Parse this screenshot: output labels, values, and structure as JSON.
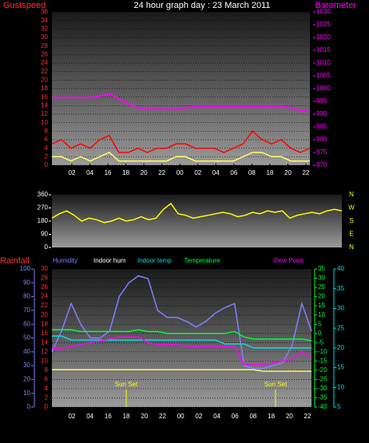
{
  "chart_data": [
    {
      "type": "line",
      "title": "24 hour graph day : 23 March 2011",
      "ylabel": "Gustspeed",
      "y2label": "Barometer",
      "x_labels": [
        "02",
        "04",
        "16",
        "18",
        "20",
        "22",
        "00",
        "02",
        "04",
        "06",
        "08",
        "18",
        "20",
        "22"
      ],
      "ylim": [
        0,
        36
      ],
      "yticks": [
        0,
        2,
        4,
        6,
        8,
        10,
        12,
        14,
        16,
        18,
        20,
        22,
        24,
        26,
        28,
        30,
        32,
        34,
        36
      ],
      "y2lim": [
        970,
        1030
      ],
      "y2ticks": [
        970,
        975,
        980,
        985,
        990,
        995,
        1000,
        1005,
        1010,
        1015,
        1020,
        1025,
        1030
      ],
      "grid": true,
      "series": [
        {
          "color": "#ff0000",
          "values": [
            5,
            6,
            4,
            5,
            4,
            6,
            7,
            3,
            3,
            4,
            3,
            4,
            4,
            5,
            5,
            4,
            4,
            4,
            3,
            4,
            5,
            8,
            6,
            5,
            6,
            4,
            3,
            4
          ]
        },
        {
          "color": "#ffff66",
          "values": [
            2,
            2,
            1,
            2,
            1,
            2,
            3,
            1,
            1,
            1,
            1,
            1,
            1,
            2,
            2,
            1,
            1,
            1,
            1,
            1,
            2,
            3,
            3,
            2,
            2,
            1,
            1,
            1
          ]
        },
        {
          "color": "#ff00ff",
          "axis": "y2",
          "values": [
            996.5,
            996.5,
            996.5,
            996.5,
            996.5,
            997,
            998,
            996,
            994,
            992.5,
            992,
            992,
            992,
            992,
            992.5,
            993,
            993,
            993,
            993,
            993,
            993,
            993,
            993,
            993,
            993,
            992.5,
            991.5,
            991
          ]
        }
      ]
    },
    {
      "type": "line",
      "ylim": [
        0,
        360
      ],
      "yticks": [
        0,
        90,
        180,
        270,
        360
      ],
      "direction_labels": [
        "N",
        "W",
        "S",
        "E",
        "N"
      ],
      "series": [
        {
          "color": "#ffff00",
          "values": [
            200,
            230,
            250,
            220,
            180,
            200,
            190,
            170,
            180,
            200,
            180,
            190,
            210,
            190,
            200,
            260,
            300,
            230,
            220,
            200,
            210,
            220,
            230,
            240,
            230,
            210,
            220,
            240,
            230,
            250,
            240,
            250,
            200,
            220,
            230,
            240,
            230,
            250,
            260,
            250
          ]
        }
      ]
    },
    {
      "type": "line",
      "ylabel": "Rainfall",
      "x_labels": [
        "02",
        "04",
        "16",
        "18",
        "20",
        "22",
        "00",
        "02",
        "04",
        "06",
        "08",
        "18",
        "20",
        "22"
      ],
      "ylim": [
        0,
        30
      ],
      "yticks": [
        0,
        2,
        4,
        6,
        8,
        10,
        12,
        14,
        16,
        18,
        20,
        22,
        24,
        26,
        28,
        30
      ],
      "humidity_lim": [
        0,
        100
      ],
      "humidity_ticks": [
        0,
        10,
        20,
        30,
        40,
        50,
        60,
        70,
        80,
        90,
        100
      ],
      "temperature_lim": [
        -40,
        35
      ],
      "temperature_ticks": [
        -40,
        -35,
        -30,
        -25,
        -20,
        -15,
        -10,
        -5,
        0,
        5,
        10,
        15,
        20,
        25,
        30,
        35
      ],
      "indoor_temp_lim": [
        5,
        40
      ],
      "indoor_temp_ticks": [
        5,
        10,
        15,
        20,
        25,
        30,
        35,
        40
      ],
      "annotations": [
        "Sun Set",
        "Sun Set"
      ],
      "series": [
        {
          "name": "Humidity",
          "color": "#8080ff",
          "axis": "humidity",
          "values": [
            40,
            55,
            75,
            60,
            50,
            50,
            55,
            80,
            90,
            95,
            93,
            70,
            65,
            65,
            62,
            58,
            62,
            68,
            72,
            75,
            30,
            28,
            28,
            30,
            32,
            45,
            75,
            55
          ]
        },
        {
          "name": "Indoor hum",
          "color": "#ffff66",
          "axis": "humidity",
          "values": [
            27,
            27,
            27,
            27,
            27,
            27,
            27,
            27,
            27,
            27,
            27,
            27,
            27,
            27,
            27,
            27,
            27,
            27,
            27,
            27,
            27,
            27,
            26,
            26,
            26,
            26,
            26,
            26
          ]
        },
        {
          "name": "Indoor temp",
          "color": "#00e0e0",
          "axis": "indoor_temp",
          "values": [
            23,
            23,
            22,
            22,
            22,
            22,
            22,
            22,
            22,
            22,
            22,
            22,
            22,
            22,
            22,
            22,
            22,
            22,
            21,
            21,
            21,
            20,
            20,
            20,
            20,
            20,
            20,
            20
          ]
        },
        {
          "name": "Temperature",
          "color": "#00ff40",
          "axis": "temperature",
          "values": [
            2,
            2,
            2,
            1,
            1,
            1,
            1,
            1,
            1,
            2,
            1,
            1,
            0,
            0,
            0,
            0,
            0,
            0,
            0,
            1,
            -2,
            -3,
            -3,
            -3,
            -3,
            -3,
            -3,
            -4
          ]
        },
        {
          "name": "Dew Point",
          "color": "#ff00ff",
          "axis": "temperature",
          "values": [
            -8,
            -8,
            -7,
            -6,
            -5,
            -4,
            -3,
            -2,
            -2,
            -2,
            -5,
            -6,
            -6,
            -6,
            -7,
            -7,
            -7,
            -7,
            -7,
            -7,
            -17,
            -17,
            -17,
            -16,
            -15,
            -14,
            -10,
            -13
          ]
        }
      ]
    }
  ]
}
